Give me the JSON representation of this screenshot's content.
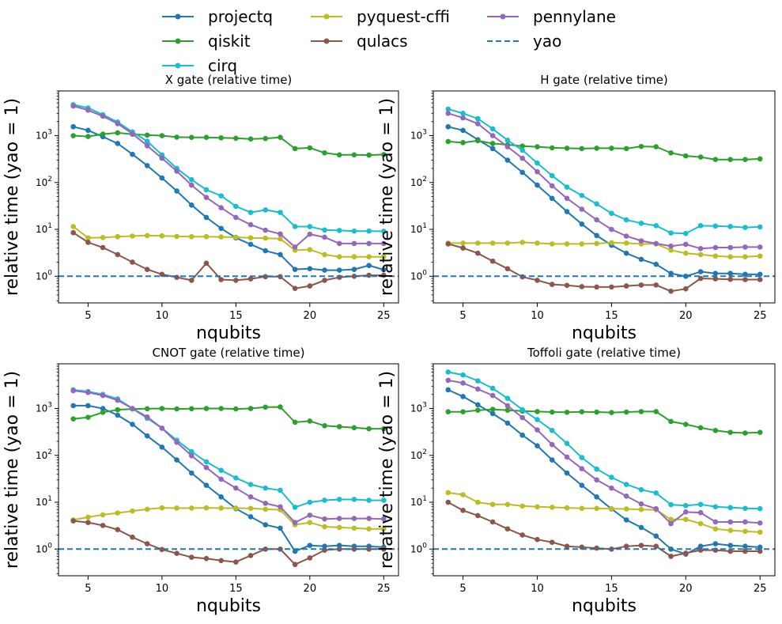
{
  "legend": {
    "items": [
      {
        "label": "projectq",
        "color": "#1f77b4",
        "style": "marker-line"
      },
      {
        "label": "qiskit",
        "color": "#2ca02c",
        "style": "marker-line"
      },
      {
        "label": "cirq",
        "color": "#17becf",
        "style": "marker-line"
      },
      {
        "label": "pyquest-cffi",
        "color": "#bcbd22",
        "style": "marker-line"
      },
      {
        "label": "qulacs",
        "color": "#8c564b",
        "style": "marker-line"
      },
      {
        "label": "pennylane",
        "color": "#9467bd",
        "style": "marker-line"
      },
      {
        "label": "yao",
        "color": "#1f77b4",
        "style": "dashed"
      }
    ]
  },
  "chart_data": [
    {
      "type": "line",
      "title": "X gate (relative time)",
      "xlabel": "nqubits",
      "ylabel": "relative time (yao = 1)",
      "yscale": "log",
      "xlim": [
        3,
        26
      ],
      "ylim": [
        0.27,
        9000
      ],
      "xticks": [
        5,
        10,
        15,
        20,
        25
      ],
      "yticks": [
        1,
        10,
        100,
        1000
      ],
      "x": [
        4,
        5,
        6,
        7,
        8,
        9,
        10,
        11,
        12,
        13,
        14,
        15,
        16,
        17,
        18,
        19,
        20,
        21,
        22,
        23,
        24,
        25
      ],
      "series": [
        {
          "name": "projectq",
          "color": "#1f77b4",
          "values": [
            1550,
            1300,
            950,
            680,
            400,
            230,
            125,
            66,
            33,
            18,
            10.5,
            6.6,
            4.8,
            3.5,
            2.9,
            1.4,
            1.45,
            1.35,
            1.35,
            1.4,
            1.7,
            1.38
          ]
        },
        {
          "name": "qiskit",
          "color": "#2ca02c",
          "values": [
            1000,
            960,
            1080,
            1150,
            1070,
            1030,
            1000,
            930,
            920,
            920,
            900,
            880,
            850,
            870,
            920,
            530,
            550,
            430,
            390,
            390,
            385,
            395
          ]
        },
        {
          "name": "cirq",
          "color": "#17becf",
          "values": [
            4600,
            3900,
            2800,
            1950,
            1200,
            760,
            390,
            200,
            115,
            70,
            52,
            31,
            23,
            26,
            23,
            11.5,
            11.5,
            9.7,
            9.5,
            9.2,
            9.2,
            9.1
          ]
        },
        {
          "name": "pyquest-cffi",
          "color": "#bcbd22",
          "values": [
            11.5,
            6.6,
            6.7,
            7.0,
            7.2,
            7.4,
            7.3,
            7.1,
            7.0,
            7.0,
            6.9,
            6.8,
            6.6,
            6.5,
            6.3,
            3.6,
            3.7,
            2.9,
            2.6,
            2.6,
            2.6,
            2.6
          ]
        },
        {
          "name": "qulacs",
          "color": "#8c564b",
          "values": [
            8.5,
            5.3,
            4.1,
            2.9,
            2.0,
            1.4,
            1.1,
            0.95,
            0.82,
            1.9,
            0.85,
            0.82,
            0.88,
            0.98,
            0.98,
            0.55,
            0.62,
            0.82,
            0.95,
            1.0,
            1.05,
            1.05
          ]
        },
        {
          "name": "pennylane",
          "color": "#9467bd",
          "values": [
            4300,
            3500,
            2600,
            1800,
            1100,
            610,
            330,
            175,
            88,
            48,
            29,
            18,
            12.6,
            9.6,
            8.0,
            4.2,
            7.9,
            6.8,
            5.0,
            5.0,
            5.0,
            5.0
          ]
        },
        {
          "name": "yao",
          "color": "#1f77b4",
          "dashed": true,
          "constant": 1
        }
      ]
    },
    {
      "type": "line",
      "title": "H gate (relative time)",
      "xlabel": "nqubits",
      "ylabel": "relative time (yao = 1)",
      "yscale": "log",
      "xlim": [
        3,
        26
      ],
      "ylim": [
        0.27,
        9000
      ],
      "xticks": [
        5,
        10,
        15,
        20,
        25
      ],
      "yticks": [
        1,
        10,
        100,
        1000
      ],
      "x": [
        4,
        5,
        6,
        7,
        8,
        9,
        10,
        11,
        12,
        13,
        14,
        15,
        16,
        17,
        18,
        19,
        20,
        21,
        22,
        23,
        24,
        25
      ],
      "series": [
        {
          "name": "projectq",
          "color": "#1f77b4",
          "values": [
            1550,
            1300,
            820,
            530,
            300,
            165,
            88,
            46,
            24,
            13,
            7.4,
            4.6,
            3.1,
            2.3,
            1.8,
            1.15,
            1.0,
            1.25,
            1.15,
            1.15,
            1.1,
            1.1
          ]
        },
        {
          "name": "qiskit",
          "color": "#2ca02c",
          "values": [
            750,
            710,
            780,
            680,
            640,
            600,
            580,
            550,
            540,
            530,
            540,
            540,
            530,
            590,
            580,
            430,
            370,
            350,
            310,
            310,
            310,
            320
          ]
        },
        {
          "name": "cirq",
          "color": "#17becf",
          "values": [
            3700,
            3000,
            2300,
            1400,
            800,
            490,
            260,
            140,
            80,
            53,
            35,
            22,
            16,
            13.5,
            12,
            8.4,
            8.2,
            12,
            11.8,
            11.5,
            11,
            11.3
          ]
        },
        {
          "name": "pyquest-cffi",
          "color": "#bcbd22",
          "values": [
            5.1,
            5.1,
            5.1,
            5.1,
            5.1,
            5.3,
            5.1,
            4.9,
            4.9,
            4.9,
            5.0,
            5.2,
            5.1,
            4.9,
            4.9,
            3.6,
            3.1,
            2.9,
            2.7,
            2.6,
            2.6,
            2.7
          ]
        },
        {
          "name": "qulacs",
          "color": "#8c564b",
          "values": [
            4.9,
            4.0,
            3.1,
            2.1,
            1.45,
            0.97,
            0.82,
            0.67,
            0.64,
            0.6,
            0.59,
            0.59,
            0.62,
            0.65,
            0.65,
            0.48,
            0.54,
            0.9,
            0.88,
            0.86,
            0.85,
            0.85
          ]
        },
        {
          "name": "pennylane",
          "color": "#9467bd",
          "values": [
            3000,
            2400,
            1800,
            1000,
            580,
            330,
            170,
            85,
            46,
            27,
            16,
            10,
            7.2,
            5.7,
            5.0,
            4.4,
            4.8,
            3.9,
            4.1,
            4.1,
            4.2,
            4.2
          ]
        },
        {
          "name": "yao",
          "color": "#1f77b4",
          "dashed": true,
          "constant": 1
        }
      ]
    },
    {
      "type": "line",
      "title": "CNOT gate (relative time)",
      "xlabel": "nqubits",
      "ylabel": "relative time (yao = 1)",
      "yscale": "log",
      "xlim": [
        3,
        26
      ],
      "ylim": [
        0.27,
        9000
      ],
      "xticks": [
        5,
        10,
        15,
        20,
        25
      ],
      "yticks": [
        1,
        10,
        100,
        1000
      ],
      "x": [
        4,
        5,
        6,
        7,
        8,
        9,
        10,
        11,
        12,
        13,
        14,
        15,
        16,
        17,
        18,
        19,
        20,
        21,
        22,
        23,
        24,
        25
      ],
      "series": [
        {
          "name": "projectq",
          "color": "#1f77b4",
          "values": [
            1150,
            1150,
            1000,
            720,
            460,
            260,
            150,
            80,
            42,
            23,
            13,
            7.3,
            4.9,
            3.3,
            2.8,
            0.9,
            1.2,
            1.15,
            1.2,
            1.15,
            1.15,
            1.1
          ]
        },
        {
          "name": "qiskit",
          "color": "#2ca02c",
          "values": [
            600,
            650,
            830,
            940,
            980,
            990,
            1000,
            980,
            990,
            1000,
            1000,
            980,
            1000,
            1070,
            1080,
            510,
            540,
            430,
            410,
            390,
            370,
            370
          ]
        },
        {
          "name": "cirq",
          "color": "#17becf",
          "values": [
            2500,
            2300,
            2000,
            1600,
            1000,
            620,
            380,
            210,
            120,
            73,
            48,
            33,
            24,
            20,
            18,
            7.8,
            10,
            11,
            11.5,
            11.5,
            11,
            11
          ]
        },
        {
          "name": "pyquest-cffi",
          "color": "#bcbd22",
          "values": [
            4.2,
            4.8,
            5.4,
            5.9,
            6.5,
            7.1,
            7.6,
            7.5,
            7.5,
            7.6,
            7.5,
            7.5,
            7.4,
            7.1,
            6.9,
            3.3,
            3.7,
            3.0,
            2.9,
            2.8,
            2.7,
            2.7
          ]
        },
        {
          "name": "qulacs",
          "color": "#8c564b",
          "values": [
            4.0,
            3.7,
            3.2,
            2.6,
            1.8,
            1.3,
            0.98,
            0.81,
            0.67,
            0.63,
            0.57,
            0.53,
            0.73,
            1.0,
            1.0,
            0.47,
            0.65,
            0.95,
            1.0,
            1.0,
            1.0,
            1.0
          ]
        },
        {
          "name": "pennylane",
          "color": "#9467bd",
          "values": [
            2400,
            2200,
            1900,
            1500,
            1000,
            660,
            380,
            190,
            98,
            55,
            31,
            20,
            13,
            9.5,
            8.0,
            3.7,
            5.3,
            4.4,
            4.5,
            4.5,
            4.5,
            4.4
          ]
        },
        {
          "name": "yao",
          "color": "#1f77b4",
          "dashed": true,
          "constant": 1
        }
      ]
    },
    {
      "type": "line",
      "title": "Toffoli gate (relative time)",
      "xlabel": "nqubits",
      "ylabel": "relative time (yao = 1)",
      "yscale": "log",
      "xlim": [
        3,
        26
      ],
      "ylim": [
        0.27,
        9000
      ],
      "xticks": [
        5,
        10,
        15,
        20,
        25
      ],
      "yticks": [
        1,
        10,
        100,
        1000
      ],
      "x": [
        4,
        5,
        6,
        7,
        8,
        9,
        10,
        11,
        12,
        13,
        14,
        15,
        16,
        17,
        18,
        19,
        20,
        21,
        22,
        23,
        24,
        25
      ],
      "series": [
        {
          "name": "projectq",
          "color": "#1f77b4",
          "values": [
            2500,
            1800,
            1200,
            780,
            490,
            270,
            160,
            80,
            42,
            23,
            13,
            7.2,
            4.2,
            2.9,
            1.9,
            1.0,
            0.78,
            1.15,
            1.3,
            1.2,
            1.15,
            1.1
          ]
        },
        {
          "name": "qiskit",
          "color": "#2ca02c",
          "values": [
            850,
            850,
            920,
            960,
            920,
            880,
            860,
            840,
            830,
            850,
            840,
            820,
            840,
            860,
            860,
            530,
            460,
            390,
            340,
            310,
            300,
            310
          ]
        },
        {
          "name": "cirq",
          "color": "#17becf",
          "values": [
            6000,
            5200,
            3900,
            2700,
            1650,
            940,
            580,
            340,
            180,
            90,
            51,
            34,
            24,
            18.5,
            15.8,
            8.9,
            8.5,
            9.0,
            8.0,
            7.7,
            7.4,
            7.3
          ]
        },
        {
          "name": "pyquest-cffi",
          "color": "#bcbd22",
          "values": [
            16,
            14.5,
            10,
            9.0,
            9.0,
            8.3,
            8.0,
            7.8,
            7.6,
            7.4,
            7.4,
            7.3,
            7.2,
            7.0,
            6.9,
            4.3,
            4.3,
            3.5,
            2.7,
            2.5,
            2.4,
            2.3
          ]
        },
        {
          "name": "qulacs",
          "color": "#8c564b",
          "values": [
            10,
            6.7,
            5.2,
            3.8,
            2.7,
            2.0,
            1.6,
            1.4,
            1.15,
            1.1,
            1.05,
            1.0,
            1.15,
            1.2,
            1.15,
            0.7,
            0.82,
            0.95,
            0.95,
            0.9,
            0.9,
            0.9
          ]
        },
        {
          "name": "pennylane",
          "color": "#9467bd",
          "values": [
            4000,
            3500,
            2600,
            1900,
            1150,
            640,
            350,
            170,
            92,
            52,
            30,
            20,
            13.5,
            9.2,
            7.3,
            3.5,
            6.2,
            6.0,
            3.8,
            3.8,
            3.8,
            3.6
          ]
        },
        {
          "name": "yao",
          "color": "#1f77b4",
          "dashed": true,
          "constant": 1
        }
      ]
    }
  ]
}
